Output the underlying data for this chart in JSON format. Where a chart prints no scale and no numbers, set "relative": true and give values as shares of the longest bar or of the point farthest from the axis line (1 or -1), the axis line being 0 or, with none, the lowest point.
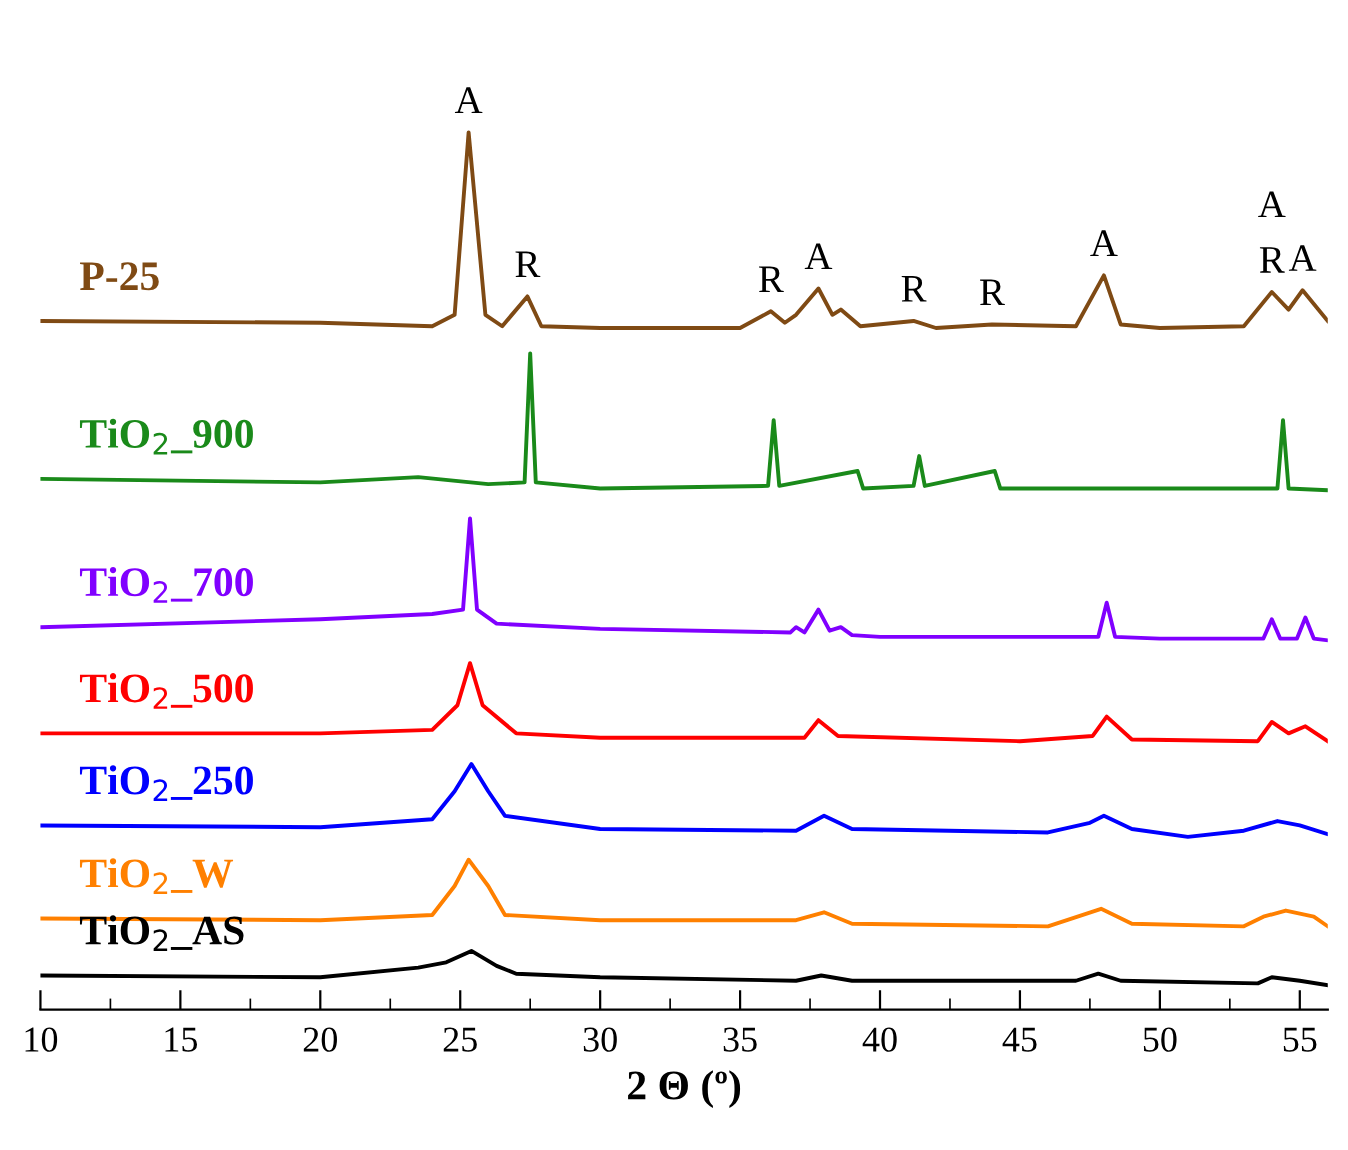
{
  "chart_data": {
    "type": "line",
    "relative": true,
    "xlabel": "2 Θ (º)",
    "xlim": [
      10,
      56
    ],
    "xticks": [
      10,
      {
        "value": 12.5,
        "label": null
      },
      15,
      {
        "value": 17.5,
        "label": null
      },
      20,
      {
        "value": 22.5,
        "label": null
      },
      25,
      {
        "value": 27.5,
        "label": null
      },
      30,
      {
        "value": 32.5,
        "label": null
      },
      35,
      {
        "value": 37.5,
        "label": null
      },
      40,
      {
        "value": 42.5,
        "label": null
      },
      45,
      {
        "value": 47.5,
        "label": null
      },
      50,
      {
        "value": 52.5,
        "label": null
      },
      55
    ],
    "tick_labels": "x",
    "grid": false,
    "legend": false,
    "marker": "none",
    "line_style": "solid",
    "series": [
      {
        "name": "P-25",
        "color": "#7f4a14",
        "x": [
          10,
          20,
          24,
          24.8,
          25.3,
          25.9,
          26.5,
          27.4,
          27.9,
          30,
          35,
          36.1,
          36.6,
          37.0,
          37.8,
          38.3,
          38.6,
          39.3,
          41.2,
          42,
          44,
          47,
          48.0,
          48.6,
          50,
          53,
          54.0,
          54.6,
          55.1,
          56
        ],
        "values": [
          0.785,
          0.783,
          0.779,
          0.792,
          1.0,
          0.792,
          0.779,
          0.813,
          0.779,
          0.777,
          0.777,
          0.796,
          0.783,
          0.792,
          0.822,
          0.792,
          0.798,
          0.779,
          0.785,
          0.777,
          0.781,
          0.779,
          0.837,
          0.781,
          0.777,
          0.779,
          0.818,
          0.798,
          0.82,
          0.785
        ]
      },
      {
        "name": "TiO$_{2}$_900",
        "color": "#1a8a1a",
        "x": [
          10,
          20,
          23.5,
          26,
          27.3,
          27.5,
          27.7,
          30,
          36.0,
          36.2,
          36.4,
          39.2,
          39.4,
          41.2,
          41.4,
          41.6,
          44.1,
          44.3,
          54.2,
          54.4,
          54.6,
          56
        ],
        "values": [
          0.605,
          0.601,
          0.607,
          0.599,
          0.601,
          0.748,
          0.601,
          0.594,
          0.597,
          0.672,
          0.597,
          0.614,
          0.594,
          0.597,
          0.631,
          0.597,
          0.614,
          0.594,
          0.594,
          0.672,
          0.594,
          0.592
        ]
      },
      {
        "name": "TiO$_{2}$_700",
        "color": "#8000ff",
        "x": [
          10,
          20,
          24,
          25.1,
          25.35,
          25.6,
          26.3,
          30,
          36.8,
          37.0,
          37.3,
          37.8,
          38.2,
          38.6,
          39,
          40,
          47.8,
          48.1,
          48.4,
          50,
          53.7,
          54.0,
          54.3,
          54.9,
          55.2,
          55.5,
          56
        ],
        "values": [
          0.436,
          0.445,
          0.451,
          0.456,
          0.56,
          0.456,
          0.44,
          0.434,
          0.43,
          0.436,
          0.43,
          0.456,
          0.432,
          0.436,
          0.427,
          0.425,
          0.425,
          0.464,
          0.425,
          0.423,
          0.423,
          0.445,
          0.423,
          0.423,
          0.447,
          0.423,
          0.421
        ]
      },
      {
        "name": "TiO$_{2}$_500",
        "color": "#ff0000",
        "x": [
          10,
          20,
          24,
          24.9,
          25.35,
          25.8,
          27,
          30,
          37.3,
          37.8,
          38.5,
          45,
          47.6,
          48.1,
          49,
          53.5,
          54.0,
          54.6,
          55.2,
          56
        ],
        "values": [
          0.315,
          0.315,
          0.319,
          0.347,
          0.395,
          0.347,
          0.315,
          0.31,
          0.31,
          0.33,
          0.312,
          0.306,
          0.312,
          0.334,
          0.308,
          0.306,
          0.328,
          0.315,
          0.323,
          0.306
        ]
      },
      {
        "name": "TiO$_{2}$_250",
        "color": "#0000ff",
        "x": [
          10,
          20,
          24,
          24.8,
          25.4,
          26.0,
          26.6,
          30,
          37,
          38,
          39,
          46,
          47.5,
          48,
          49,
          51,
          53,
          54.2,
          55,
          56
        ],
        "values": [
          0.21,
          0.208,
          0.217,
          0.249,
          0.28,
          0.249,
          0.221,
          0.206,
          0.204,
          0.221,
          0.206,
          0.202,
          0.213,
          0.221,
          0.206,
          0.197,
          0.204,
          0.215,
          0.21,
          0.2
        ]
      },
      {
        "name": "TiO$_{2}$_W",
        "color": "#ff8000",
        "x": [
          10,
          20,
          24,
          24.8,
          25.3,
          26.0,
          26.6,
          30,
          37,
          38,
          39,
          46,
          47.9,
          49,
          53,
          53.7,
          54.5,
          55.5,
          56
        ],
        "values": [
          0.104,
          0.102,
          0.108,
          0.141,
          0.171,
          0.141,
          0.108,
          0.102,
          0.102,
          0.111,
          0.098,
          0.095,
          0.115,
          0.098,
          0.095,
          0.106,
          0.113,
          0.106,
          0.095
        ]
      },
      {
        "name": "TiO$_{2}$_AS",
        "color": "#000000",
        "x": [
          10,
          20,
          23.5,
          24.5,
          25.4,
          26.3,
          27,
          30,
          37,
          37.9,
          39,
          47,
          47.8,
          48.6,
          53.5,
          54,
          55,
          56
        ],
        "values": [
          0.039,
          0.037,
          0.048,
          0.054,
          0.067,
          0.05,
          0.041,
          0.037,
          0.033,
          0.039,
          0.033,
          0.033,
          0.041,
          0.033,
          0.03,
          0.037,
          0.033,
          0.028
        ]
      }
    ],
    "annotations": [
      {
        "text": "A",
        "x": 25.3,
        "y": 1.0
      },
      {
        "text": "R",
        "x": 27.4,
        "y": 0.813
      },
      {
        "text": "R",
        "x": 36.1,
        "y": 0.796
      },
      {
        "text": "A",
        "x": 37.8,
        "y": 0.822
      },
      {
        "text": "R",
        "x": 41.2,
        "y": 0.785
      },
      {
        "text": "R",
        "x": 44,
        "y": 0.781
      },
      {
        "text": "A",
        "x": 48.0,
        "y": 0.837
      },
      {
        "text": "R",
        "x": 54.0,
        "y": 0.818
      },
      {
        "text": "A",
        "x": 54.0,
        "y": 0.818
      },
      {
        "text": "A",
        "x": 55.1,
        "y": 0.82
      }
    ]
  }
}
